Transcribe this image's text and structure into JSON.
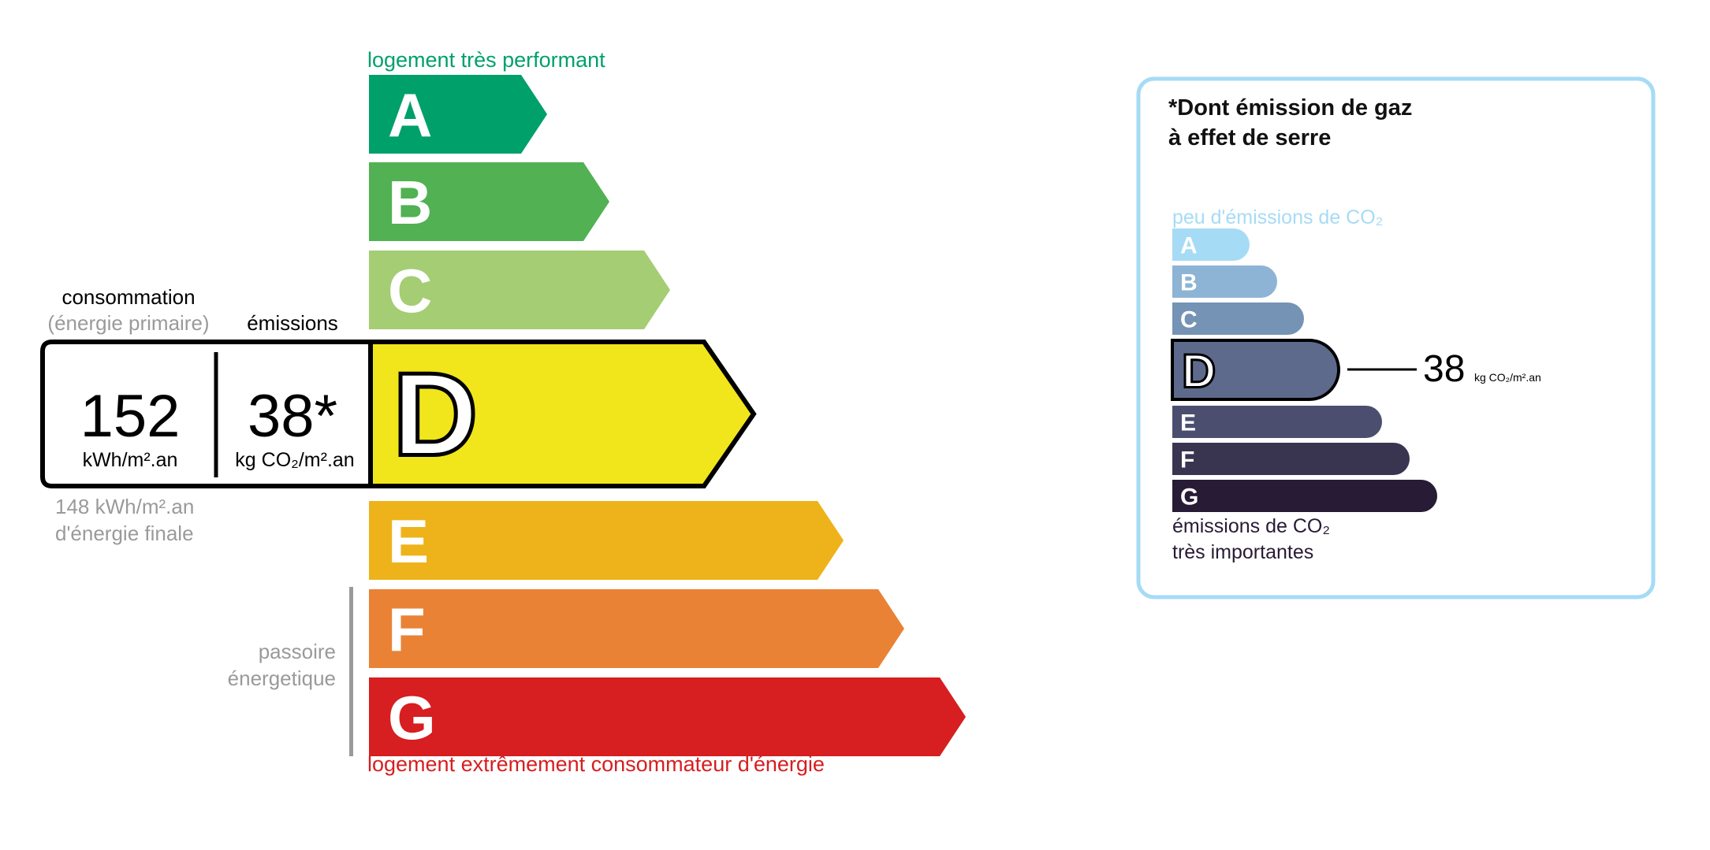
{
  "energy": {
    "top_label": "logement très performant",
    "bottom_label": "logement extrêmement consommateur d'énergie",
    "passoire_line1": "passoire",
    "passoire_line2": "énergetique",
    "current_class": "D",
    "classes": [
      {
        "letter": "A",
        "color": "#00a06b"
      },
      {
        "letter": "B",
        "color": "#51b153"
      },
      {
        "letter": "C",
        "color": "#a5cd74"
      },
      {
        "letter": "D",
        "color": "#f1e51c"
      },
      {
        "letter": "E",
        "color": "#eeb31a"
      },
      {
        "letter": "F",
        "color": "#ea8235"
      },
      {
        "letter": "G",
        "color": "#d71e20"
      }
    ],
    "consumption_label": "consommation",
    "consumption_sublabel": "(énergie primaire)",
    "emissions_label": "émissions",
    "consumption_value": "152",
    "consumption_unit": "kWh/m².an",
    "emissions_value": "38*",
    "emissions_unit": "kg CO₂/m².an",
    "final_energy_line1": "148 kWh/m².an",
    "final_energy_line2": "d'énergie finale"
  },
  "ges": {
    "title_line1": "*Dont émission de gaz",
    "title_line2": "à effet de serre",
    "top_label": "peu d'émissions de CO₂",
    "bottom_line1": "émissions de CO₂",
    "bottom_line2": "très importantes",
    "current_class": "D",
    "value": "38",
    "unit": "kg CO₂/m².an",
    "border_color": "#a6dbf6",
    "classes": [
      {
        "letter": "A",
        "color": "#a6dbf6"
      },
      {
        "letter": "B",
        "color": "#8db4d4"
      },
      {
        "letter": "C",
        "color": "#7593b4"
      },
      {
        "letter": "D",
        "color": "#5e6a8c"
      },
      {
        "letter": "E",
        "color": "#4b4e6e"
      },
      {
        "letter": "F",
        "color": "#393551"
      },
      {
        "letter": "G",
        "color": "#281b35"
      }
    ]
  }
}
